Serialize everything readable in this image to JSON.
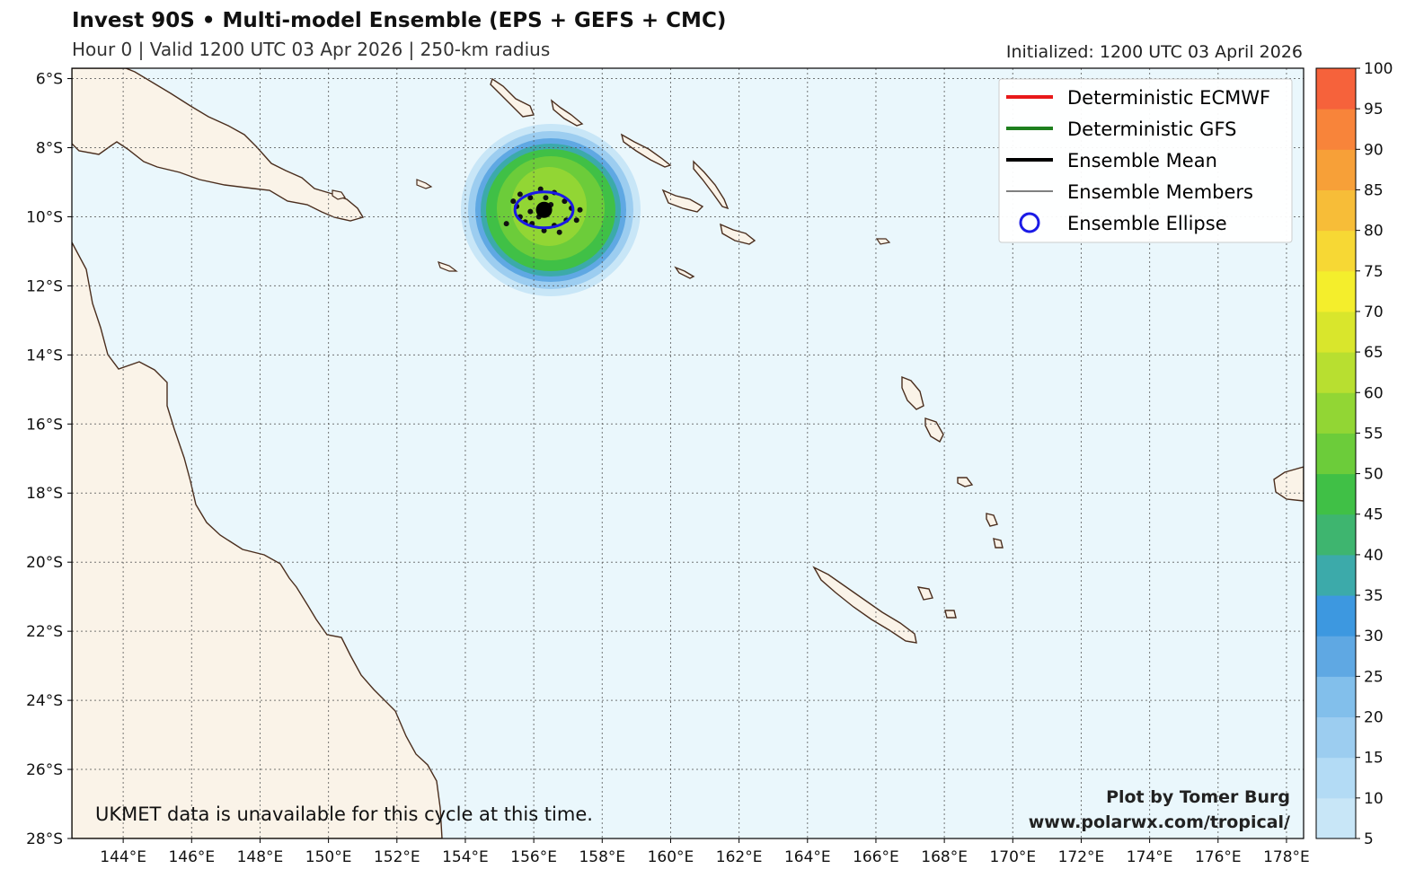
{
  "header": {
    "title": "Invest 90S • Multi-model Ensemble (EPS + GEFS + CMC)",
    "subtitle": "Hour 0 | Valid 1200 UTC 03 Apr 2026 | 250-km radius",
    "initialized": "Initialized: 1200 UTC 03 April 2026"
  },
  "map": {
    "lon_range": [
      142.5,
      178.5
    ],
    "lat_range": [
      -28,
      -5.7
    ],
    "lon_ticks": [
      "144°E",
      "146°E",
      "148°E",
      "150°E",
      "152°E",
      "154°E",
      "156°E",
      "158°E",
      "160°E",
      "162°E",
      "164°E",
      "166°E",
      "168°E",
      "170°E",
      "172°E",
      "174°E",
      "176°E",
      "178°E"
    ],
    "lat_ticks": [
      "6°S",
      "8°S",
      "10°S",
      "12°S",
      "14°S",
      "16°S",
      "18°S",
      "20°S",
      "22°S",
      "24°S",
      "26°S",
      "28°S"
    ],
    "ocean_color": "#eaf7fc",
    "land_color": "#faf3e8",
    "coast_color": "#4a2e1e"
  },
  "legend": {
    "items": [
      {
        "label": "Deterministic ECMWF",
        "color": "#e8191a",
        "style": "thick"
      },
      {
        "label": "Deterministic GFS",
        "color": "#1e7f1e",
        "style": "thick"
      },
      {
        "label": "Ensemble Mean",
        "color": "#000000",
        "style": "thick"
      },
      {
        "label": "Ensemble Members",
        "color": "#000000",
        "style": "thin"
      },
      {
        "label": "Ensemble Ellipse",
        "color": "#1a1ae6",
        "style": "circle"
      }
    ]
  },
  "storm": {
    "center_lon": 156.3,
    "center_lat": -9.8,
    "members": [
      [
        155.6,
        -9.35
      ],
      [
        155.9,
        -9.45
      ],
      [
        156.2,
        -9.2
      ],
      [
        156.6,
        -9.3
      ],
      [
        156.9,
        -9.55
      ],
      [
        157.1,
        -9.75
      ],
      [
        156.95,
        -10.1
      ],
      [
        156.6,
        -10.25
      ],
      [
        156.3,
        -10.4
      ],
      [
        155.95,
        -10.2
      ],
      [
        155.6,
        -10.0
      ],
      [
        155.5,
        -9.7
      ],
      [
        155.2,
        -10.2
      ],
      [
        155.9,
        -9.85
      ],
      [
        156.5,
        -9.65
      ],
      [
        156.15,
        -10.0
      ],
      [
        157.35,
        -9.8
      ],
      [
        157.25,
        -10.1
      ],
      [
        156.75,
        -10.45
      ],
      [
        155.4,
        -9.55
      ],
      [
        156.35,
        -9.45
      ],
      [
        155.75,
        -10.15
      ]
    ],
    "ellipse_radius_lon": 0.85,
    "ellipse_radius_lat": 0.52
  },
  "colorbar": {
    "ticks": [
      "5",
      "10",
      "15",
      "20",
      "25",
      "30",
      "35",
      "40",
      "45",
      "50",
      "55",
      "60",
      "65",
      "70",
      "75",
      "80",
      "85",
      "90",
      "95",
      "100"
    ],
    "colors": [
      "#c8e6f7",
      "#b3dbf5",
      "#9ccdf0",
      "#82bfeb",
      "#5fa8e3",
      "#3d98e0",
      "#3caaaa",
      "#3eb56f",
      "#40c046",
      "#6ccc3a",
      "#92d634",
      "#b8df30",
      "#d9e62c",
      "#f4ee2c",
      "#f7d834",
      "#f7bd38",
      "#f7a038",
      "#f8843a",
      "#f6623b",
      "#f0443c"
    ]
  },
  "annotations": {
    "ukmet_note": "UKMET data is unavailable for this cycle at this time.",
    "credit_line1": "Plot by Tomer Burg",
    "credit_line2": "www.polarwx.com/tropical/"
  }
}
